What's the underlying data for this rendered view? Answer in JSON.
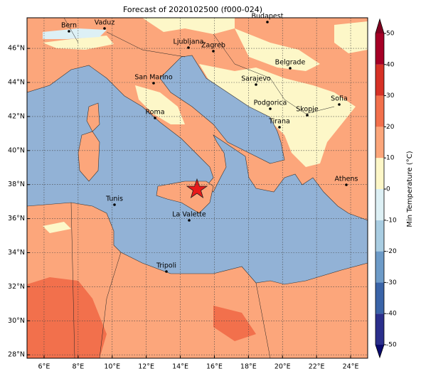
{
  "title": "Forecast of 2020102500 (f000-024)",
  "map": {
    "xlim": [
      5,
      25
    ],
    "ylim": [
      27.8,
      47.8
    ],
    "grid": true,
    "xticks": [
      {
        "value": 6,
        "label": "6°E"
      },
      {
        "value": 8,
        "label": "8°E"
      },
      {
        "value": 10,
        "label": "10°E"
      },
      {
        "value": 12,
        "label": "12°E"
      },
      {
        "value": 14,
        "label": "14°E"
      },
      {
        "value": 16,
        "label": "16°E"
      },
      {
        "value": 18,
        "label": "18°E"
      },
      {
        "value": 20,
        "label": "20°E"
      },
      {
        "value": 22,
        "label": "22°E"
      },
      {
        "value": 24,
        "label": "24°E"
      }
    ],
    "yticks": [
      {
        "value": 28,
        "label": "28°N"
      },
      {
        "value": 30,
        "label": "30°N"
      },
      {
        "value": 32,
        "label": "32°N"
      },
      {
        "value": 34,
        "label": "34°N"
      },
      {
        "value": 36,
        "label": "36°N"
      },
      {
        "value": 38,
        "label": "38°N"
      },
      {
        "value": 40,
        "label": "40°N"
      },
      {
        "value": 42,
        "label": "42°N"
      },
      {
        "value": 44,
        "label": "44°N"
      },
      {
        "value": 46,
        "label": "46°N"
      }
    ],
    "cities": [
      "Bern",
      "Vaduz",
      "Budapest",
      "Ljubljana",
      "Zagreb",
      "Belgrade",
      "Sarajevo",
      "San Marino",
      "Podgorica",
      "Skopje",
      "Sofia",
      "Roma",
      "Tirana",
      "Athens",
      "Tunis",
      "La Valette",
      "Tripoli"
    ]
  },
  "colorbar": {
    "label": "Min Temperature (°C)",
    "ticks": [
      -50,
      -40,
      -30,
      -20,
      -10,
      0,
      10,
      20,
      30,
      40,
      50
    ],
    "colors": [
      "#2b2f8c",
      "#3a64a8",
      "#6d9bc8",
      "#a9cde2",
      "#ddf0f5",
      "#fdf7c8",
      "#fca67b",
      "#f2704c",
      "#d63126",
      "#a50026"
    ],
    "under_color": "#0a0a6e",
    "over_color": "#800020"
  }
}
